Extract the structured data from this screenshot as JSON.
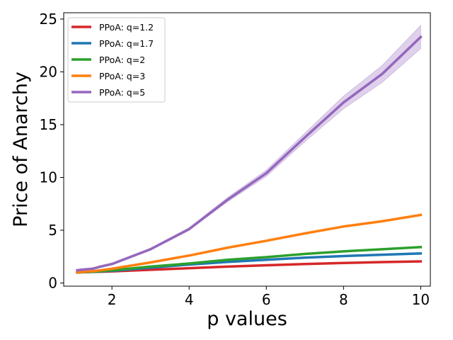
{
  "chart_data": {
    "type": "line",
    "title": "",
    "xlabel": "p values",
    "ylabel": "Price of Anarchy",
    "xlim": [
      0.75,
      10.25
    ],
    "ylim": [
      -0.3,
      25.6
    ],
    "xticks": [
      2,
      4,
      6,
      8,
      10
    ],
    "yticks": [
      0,
      5,
      10,
      15,
      20,
      25
    ],
    "grid": false,
    "legend_position": "top-left",
    "x": [
      1.1,
      1.2,
      1.5,
      1.7,
      2,
      3,
      4,
      5,
      6,
      7,
      8,
      9,
      10
    ],
    "series": [
      {
        "name": "PPoA: q=1.2",
        "color": "#d62728",
        "values": [
          1.0,
          1.02,
          1.05,
          1.07,
          1.1,
          1.25,
          1.4,
          1.55,
          1.68,
          1.8,
          1.9,
          1.98,
          2.05
        ]
      },
      {
        "name": "PPoA: q=1.7",
        "color": "#1f77b4",
        "values": [
          1.0,
          1.02,
          1.06,
          1.1,
          1.15,
          1.45,
          1.75,
          2.0,
          2.2,
          2.4,
          2.55,
          2.68,
          2.8
        ]
      },
      {
        "name": "PPoA: q=2",
        "color": "#2ca02c",
        "values": [
          1.0,
          1.02,
          1.07,
          1.12,
          1.2,
          1.55,
          1.85,
          2.2,
          2.45,
          2.75,
          3.0,
          3.2,
          3.4
        ]
      },
      {
        "name": "PPoA: q=3",
        "color": "#ff7f0e",
        "values": [
          1.0,
          1.03,
          1.12,
          1.2,
          1.35,
          1.95,
          2.6,
          3.35,
          4.0,
          4.7,
          5.35,
          5.85,
          6.45
        ]
      },
      {
        "name": "PPoA: q=5",
        "color": "#9467bd",
        "values": [
          1.2,
          1.25,
          1.35,
          1.55,
          1.8,
          3.2,
          5.1,
          7.9,
          10.4,
          13.8,
          17.1,
          19.8,
          23.3
        ],
        "band_lower": [
          1.1,
          1.15,
          1.25,
          1.45,
          1.7,
          3.1,
          5.0,
          7.7,
          10.1,
          13.4,
          16.5,
          19.0,
          22.2
        ],
        "band_upper": [
          1.3,
          1.35,
          1.45,
          1.65,
          1.9,
          3.3,
          5.25,
          8.1,
          10.7,
          14.2,
          17.7,
          20.6,
          24.4
        ]
      }
    ]
  }
}
